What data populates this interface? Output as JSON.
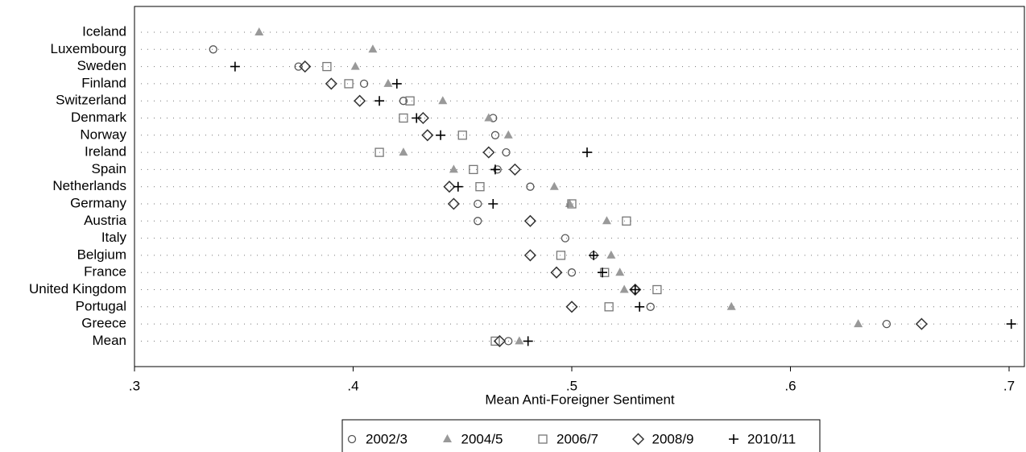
{
  "chart_data": {
    "type": "dot",
    "x_label": "Mean Anti-Foreigner Sentiment",
    "categories": [
      "Iceland",
      "Luxembourg",
      "Sweden",
      "Finland",
      "Switzerland",
      "Denmark",
      "Norway",
      "Ireland",
      "Spain",
      "Netherlands",
      "Germany",
      "Austria",
      "Italy",
      "Belgium",
      "France",
      "United Kingdom",
      "Portugal",
      "Greece",
      "Mean"
    ],
    "xlim": [
      0.3,
      0.707
    ],
    "xticks": [
      {
        "value": 0.3,
        "label": ".3"
      },
      {
        "value": 0.4,
        "label": ".4"
      },
      {
        "value": 0.5,
        "label": ".5"
      },
      {
        "value": 0.6,
        "label": ".6"
      },
      {
        "value": 0.7,
        "label": ".7"
      }
    ],
    "series": [
      {
        "name": "2002/3",
        "marker": "circle",
        "color": "#555555",
        "values": [
          null,
          0.336,
          0.375,
          0.405,
          0.423,
          0.464,
          0.465,
          0.47,
          0.466,
          0.481,
          0.457,
          0.457,
          0.497,
          0.51,
          0.5,
          0.529,
          0.536,
          0.644,
          0.471
        ]
      },
      {
        "name": "2004/5",
        "marker": "triangle",
        "color": "#999999",
        "values": [
          0.357,
          0.409,
          0.401,
          0.416,
          0.441,
          0.462,
          0.471,
          0.423,
          0.446,
          0.492,
          0.499,
          0.516,
          null,
          0.518,
          0.522,
          0.524,
          0.573,
          0.631,
          0.476
        ]
      },
      {
        "name": "2006/7",
        "marker": "square",
        "color": "#777777",
        "values": [
          null,
          null,
          0.388,
          0.398,
          0.426,
          0.423,
          0.45,
          0.412,
          0.455,
          0.458,
          0.5,
          0.525,
          null,
          0.495,
          0.515,
          0.539,
          0.517,
          null,
          0.465
        ]
      },
      {
        "name": "2008/9",
        "marker": "diamond",
        "color": "#333333",
        "values": [
          null,
          null,
          0.378,
          0.39,
          0.403,
          0.432,
          0.434,
          0.462,
          0.474,
          0.444,
          0.446,
          0.481,
          null,
          0.481,
          0.493,
          0.529,
          0.5,
          0.66,
          0.467
        ]
      },
      {
        "name": "2010/11",
        "marker": "plus",
        "color": "#000000",
        "values": [
          null,
          null,
          0.346,
          0.42,
          0.412,
          0.429,
          0.44,
          0.507,
          0.465,
          0.448,
          0.464,
          null,
          null,
          0.51,
          0.514,
          0.529,
          0.531,
          0.701,
          0.48
        ]
      }
    ]
  }
}
